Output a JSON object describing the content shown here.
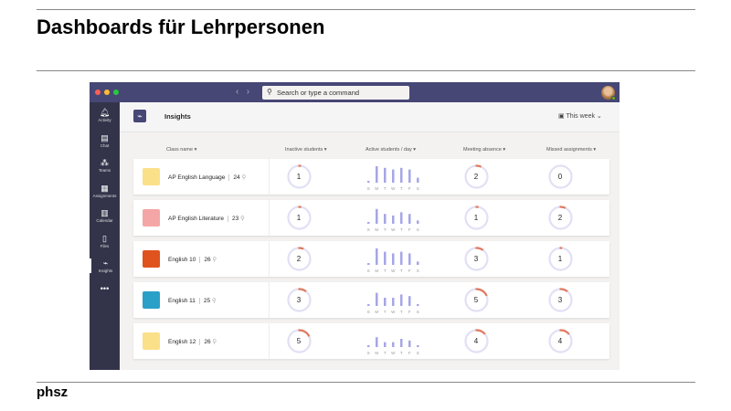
{
  "slide": {
    "title": "Dashboards für Lehrpersonen",
    "footer": "phsz"
  },
  "app": {
    "search_placeholder": "Search or type a command",
    "sidebar": [
      {
        "label": "Activity",
        "icon": "bell-icon"
      },
      {
        "label": "Chat",
        "icon": "chat-icon"
      },
      {
        "label": "Teams",
        "icon": "teams-icon"
      },
      {
        "label": "Assignments",
        "icon": "assignments-icon"
      },
      {
        "label": "Calendar",
        "icon": "calendar-icon"
      },
      {
        "label": "Files",
        "icon": "files-icon"
      },
      {
        "label": "Insights",
        "icon": "insights-icon"
      },
      {
        "label": "•••",
        "icon": "more-icon"
      }
    ],
    "page_title": "Insights",
    "period": "This week",
    "columns": [
      "Class name ▾",
      "Inactive students ▾",
      "Active students / day ▾",
      "Meeting absence ▾",
      "Missed assignments ▾"
    ],
    "days": [
      "S",
      "M",
      "T",
      "W",
      "T",
      "F",
      "S"
    ],
    "colors": {
      "accent": "#464775",
      "ring": "#e1e0f5",
      "ring_alert": "#e07a5f",
      "bar": "#a6a6e8"
    },
    "classes": [
      {
        "name": "AP English Language",
        "students": "24",
        "inactive": "1",
        "meeting_absence": "2",
        "missed": "0",
        "icon_color": "#fbe08a",
        "activity": [
          0.1,
          1,
          0.9,
          0.8,
          0.9,
          0.8,
          0.3
        ]
      },
      {
        "name": "AP English Literature",
        "students": "23",
        "inactive": "1",
        "meeting_absence": "1",
        "missed": "2",
        "icon_color": "#f4a6a6",
        "activity": [
          0.1,
          0.9,
          0.6,
          0.5,
          0.7,
          0.6,
          0.2
        ]
      },
      {
        "name": "English 10",
        "students": "26",
        "inactive": "2",
        "meeting_absence": "3",
        "missed": "1",
        "icon_color": "#e0531f",
        "activity": [
          0.1,
          1,
          0.8,
          0.7,
          0.8,
          0.7,
          0.2
        ]
      },
      {
        "name": "English 11",
        "students": "25",
        "inactive": "3",
        "meeting_absence": "5",
        "missed": "3",
        "icon_color": "#2aa0c8",
        "activity": [
          0.1,
          0.8,
          0.5,
          0.5,
          0.7,
          0.6,
          0.1
        ]
      },
      {
        "name": "English 12",
        "students": "26",
        "inactive": "5",
        "meeting_absence": "4",
        "missed": "4",
        "icon_color": "#fbe08a",
        "activity": [
          0.1,
          0.6,
          0.3,
          0.3,
          0.5,
          0.4,
          0.1
        ]
      }
    ]
  }
}
